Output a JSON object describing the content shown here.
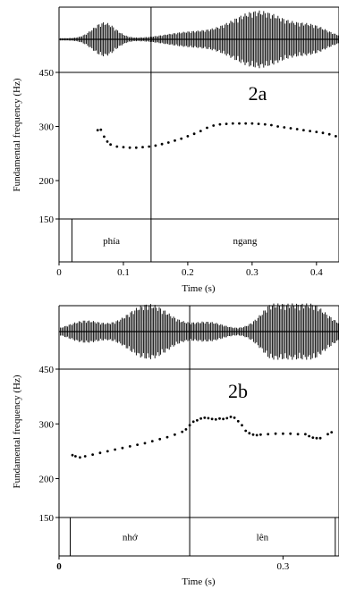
{
  "chart_data": [
    {
      "type": "scatter",
      "panel_label": "2a",
      "ylabel": "Fundamental frequency (Hz)",
      "xlabel": "Time (s)",
      "xlim": [
        0,
        0.435
      ],
      "ylim": [
        150,
        450
      ],
      "yscale": "log",
      "yticks": [
        "450",
        "300",
        "200",
        "150"
      ],
      "xticks": [
        "0",
        "0.1",
        "0.2",
        "0.3",
        "0.4"
      ],
      "boundaries": [
        0.02,
        0.143,
        0.435
      ],
      "segments": [
        {
          "label": "phía",
          "start": 0.02,
          "end": 0.143
        },
        {
          "label": "ngang",
          "start": 0.143,
          "end": 0.435
        }
      ],
      "waveform": {
        "duration": 0.435,
        "bursts": [
          {
            "center": 0.07,
            "width": 0.025,
            "amp": 0.55
          },
          {
            "center": 0.2,
            "width": 0.05,
            "amp": 0.2
          },
          {
            "center": 0.31,
            "width": 0.06,
            "amp": 0.95
          },
          {
            "center": 0.395,
            "width": 0.035,
            "amp": 0.35
          }
        ]
      },
      "x": [
        0.06,
        0.065,
        0.07,
        0.075,
        0.08,
        0.09,
        0.1,
        0.11,
        0.12,
        0.13,
        0.14,
        0.15,
        0.16,
        0.17,
        0.18,
        0.19,
        0.2,
        0.21,
        0.22,
        0.23,
        0.24,
        0.25,
        0.26,
        0.27,
        0.28,
        0.29,
        0.3,
        0.31,
        0.32,
        0.33,
        0.34,
        0.35,
        0.36,
        0.37,
        0.38,
        0.39,
        0.4,
        0.41,
        0.42,
        0.43
      ],
      "y": [
        292,
        293,
        278,
        268,
        262,
        258,
        257,
        256,
        256,
        257,
        258,
        260,
        263,
        266,
        270,
        274,
        279,
        284,
        290,
        297,
        302,
        305,
        306,
        307,
        307,
        307,
        307,
        306,
        305,
        303,
        300,
        298,
        296,
        294,
        292,
        290,
        288,
        286,
        283,
        279
      ]
    },
    {
      "type": "scatter",
      "panel_label": "2b",
      "ylabel": "Fundamental frequency (Hz)",
      "xlabel": "Time (s)",
      "xlim": [
        0,
        0.375
      ],
      "ylim": [
        150,
        450
      ],
      "yscale": "log",
      "yticks": [
        "450",
        "300",
        "200",
        "150"
      ],
      "xticks": [
        "0",
        "0.3"
      ],
      "boundaries": [
        0.015,
        0.175,
        0.37
      ],
      "segments": [
        {
          "label": "nhớ",
          "start": 0.015,
          "end": 0.175
        },
        {
          "label": "lên",
          "start": 0.175,
          "end": 0.37
        }
      ],
      "waveform": {
        "duration": 0.375,
        "bursts": [
          {
            "center": 0.035,
            "width": 0.03,
            "amp": 0.35
          },
          {
            "center": 0.12,
            "width": 0.04,
            "amp": 0.95
          },
          {
            "center": 0.2,
            "width": 0.03,
            "amp": 0.3
          },
          {
            "center": 0.29,
            "width": 0.03,
            "amp": 0.75
          },
          {
            "center": 0.33,
            "width": 0.04,
            "amp": 1.0
          }
        ]
      },
      "x": [
        0.018,
        0.022,
        0.028,
        0.035,
        0.045,
        0.055,
        0.065,
        0.075,
        0.085,
        0.095,
        0.105,
        0.115,
        0.125,
        0.135,
        0.145,
        0.155,
        0.165,
        0.17,
        0.175,
        0.18,
        0.185,
        0.19,
        0.195,
        0.2,
        0.205,
        0.21,
        0.215,
        0.22,
        0.225,
        0.23,
        0.235,
        0.24,
        0.245,
        0.25,
        0.255,
        0.26,
        0.265,
        0.27,
        0.28,
        0.29,
        0.3,
        0.31,
        0.32,
        0.33,
        0.335,
        0.34,
        0.345,
        0.35,
        0.36,
        0.365
      ],
      "y": [
        238,
        236,
        234,
        236,
        239,
        242,
        245,
        248,
        251,
        254,
        257,
        260,
        264,
        268,
        272,
        277,
        283,
        288,
        297,
        305,
        308,
        312,
        314,
        313,
        311,
        310,
        312,
        311,
        313,
        316,
        314,
        306,
        297,
        285,
        280,
        277,
        276,
        277,
        278,
        279,
        279,
        279,
        278,
        278,
        274,
        271,
        270,
        270,
        278,
        282
      ]
    }
  ]
}
